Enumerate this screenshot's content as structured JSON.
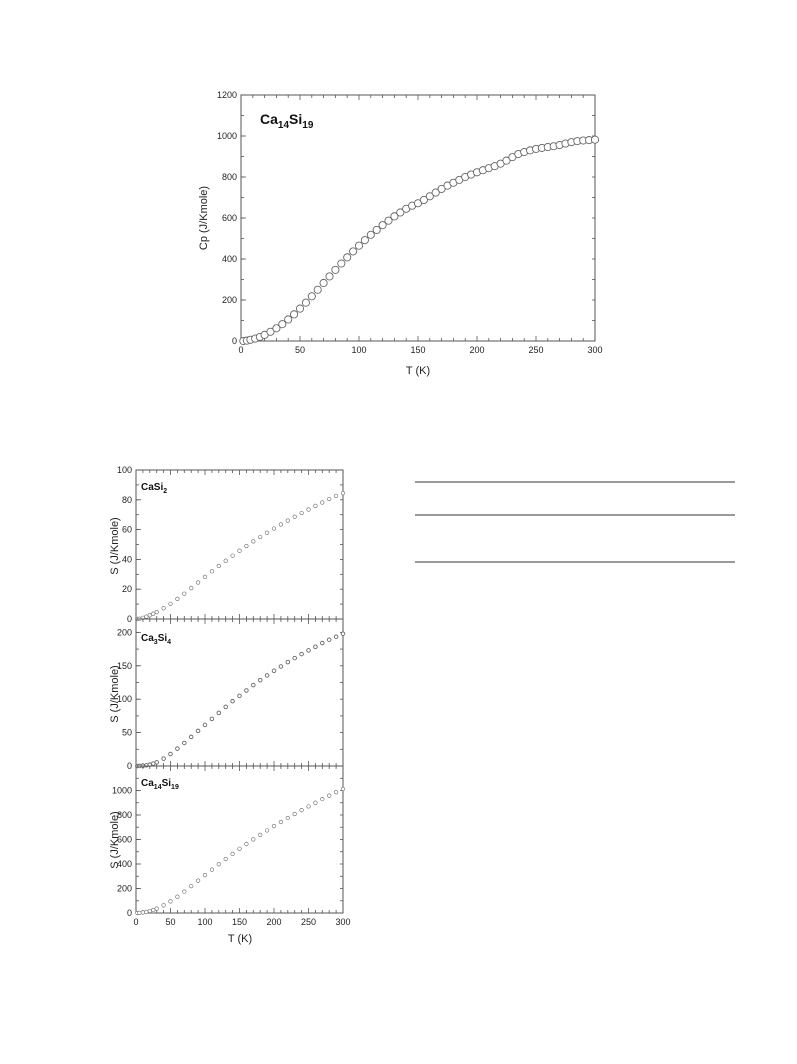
{
  "chart_data": [
    {
      "type": "scatter",
      "title": {
        "base1": "Ca",
        "sub1": "14",
        "base2": "Si",
        "sub2": "19"
      },
      "xlabel": "T (K)",
      "ylabel": "Cp (J/Kmole)",
      "xlim": [
        0,
        300
      ],
      "ylim": [
        0,
        1200
      ],
      "xticks": [
        0,
        50,
        100,
        150,
        200,
        250,
        300
      ],
      "yticks": [
        0,
        200,
        400,
        600,
        800,
        1000,
        1200
      ],
      "series": [
        {
          "marker": "open-circle",
          "x": [
            2,
            5,
            8,
            12,
            16,
            20,
            25,
            30,
            35,
            40,
            45,
            50,
            55,
            60,
            65,
            70,
            75,
            80,
            85,
            90,
            95,
            100,
            105,
            110,
            115,
            120,
            125,
            130,
            135,
            140,
            145,
            150,
            155,
            160,
            165,
            170,
            175,
            180,
            185,
            190,
            195,
            200,
            205,
            210,
            215,
            220,
            225,
            230,
            235,
            240,
            245,
            250,
            255,
            260,
            265,
            270,
            275,
            280,
            285,
            290,
            295,
            300
          ],
          "y": [
            0,
            2,
            6,
            12,
            20,
            30,
            45,
            62,
            82,
            105,
            130,
            158,
            187,
            218,
            250,
            283,
            315,
            347,
            378,
            408,
            437,
            465,
            492,
            518,
            542,
            565,
            587,
            608,
            627,
            645,
            660,
            672,
            688,
            706,
            724,
            742,
            758,
            772,
            786,
            800,
            812,
            823,
            833,
            843,
            853,
            865,
            880,
            897,
            912,
            922,
            930,
            937,
            942,
            946,
            950,
            956,
            963,
            970,
            975,
            978,
            980,
            982
          ]
        }
      ]
    },
    {
      "type": "scatter",
      "title": {
        "base1": "CaSi",
        "sub1": "2",
        "base2": "",
        "sub2": ""
      },
      "xlabel": "",
      "ylabel": "S (J/Kmole)",
      "xlim": [
        0,
        300
      ],
      "ylim": [
        0,
        100
      ],
      "yticks": [
        0,
        20,
        40,
        60,
        80,
        100
      ],
      "series": [
        {
          "marker": "small-circle",
          "x": [
            2,
            5,
            10,
            15,
            20,
            25,
            30,
            40,
            50,
            60,
            70,
            80,
            90,
            100,
            110,
            120,
            130,
            140,
            150,
            160,
            170,
            180,
            190,
            200,
            210,
            220,
            230,
            240,
            250,
            260,
            270,
            280,
            290,
            300
          ],
          "y": [
            0,
            0.2,
            0.8,
            1.6,
            2.5,
            3.5,
            4.6,
            7.2,
            10.2,
            13.5,
            17,
            20.7,
            24.5,
            28.3,
            32,
            35.6,
            39.1,
            42.5,
            45.8,
            49,
            52.1,
            55,
            57.9,
            60.7,
            63.4,
            66,
            68.6,
            71.1,
            73.5,
            75.9,
            78.2,
            80.5,
            82.6,
            84.5
          ]
        }
      ]
    },
    {
      "type": "scatter",
      "title": {
        "base1": "Ca",
        "sub1": "3",
        "base2": "Si",
        "sub2": "4"
      },
      "xlabel": "",
      "ylabel": "S (J/Kmole)",
      "xlim": [
        0,
        300
      ],
      "ylim": [
        0,
        220
      ],
      "yticks": [
        0,
        50,
        100,
        150,
        200
      ],
      "series": [
        {
          "marker": "small-circle",
          "x": [
            2,
            5,
            10,
            15,
            20,
            25,
            30,
            40,
            50,
            60,
            70,
            80,
            90,
            100,
            110,
            120,
            130,
            140,
            150,
            160,
            170,
            180,
            190,
            200,
            210,
            220,
            230,
            240,
            250,
            260,
            270,
            280,
            290,
            300
          ],
          "y": [
            0,
            0.1,
            0.4,
            1,
            2,
            3.5,
            5.5,
            11,
            18,
            26,
            34.5,
            43.5,
            52.5,
            61.5,
            70.5,
            79.5,
            88.5,
            97,
            105,
            113,
            121,
            128.5,
            135.5,
            142.5,
            149,
            155.5,
            161.5,
            167.5,
            173,
            178.5,
            184,
            189,
            193.5,
            198
          ]
        }
      ]
    },
    {
      "type": "scatter",
      "title": {
        "base1": "Ca",
        "sub1": "14",
        "base2": "Si",
        "sub2": "19"
      },
      "xlabel": "T (K)",
      "ylabel": "S (J/Kmole)",
      "xlim": [
        0,
        300
      ],
      "ylim": [
        0,
        1200
      ],
      "xticks": [
        0,
        50,
        100,
        150,
        200,
        250,
        300
      ],
      "yticks": [
        0,
        200,
        400,
        600,
        800,
        1000
      ],
      "series": [
        {
          "marker": "small-circle",
          "x": [
            2,
            5,
            10,
            15,
            20,
            25,
            30,
            40,
            50,
            60,
            70,
            80,
            90,
            100,
            110,
            120,
            130,
            140,
            150,
            160,
            170,
            180,
            190,
            200,
            210,
            220,
            230,
            240,
            250,
            260,
            270,
            280,
            290,
            300
          ],
          "y": [
            0,
            1,
            4,
            9,
            16,
            25,
            36,
            62,
            95,
            133,
            175,
            219,
            264,
            309,
            354,
            398,
            441,
            483,
            524,
            563,
            601,
            638,
            674,
            709,
            743,
            776,
            808,
            840,
            870,
            900,
            930,
            958,
            986,
            1012
          ]
        }
      ]
    }
  ]
}
